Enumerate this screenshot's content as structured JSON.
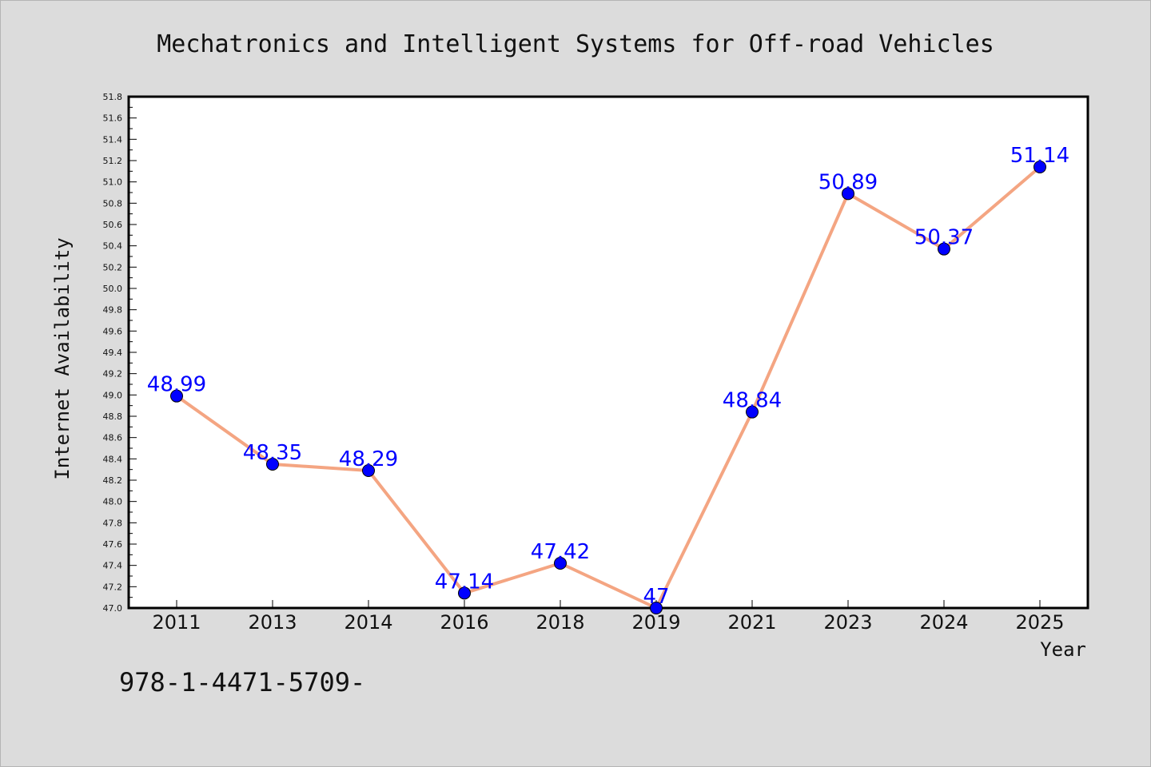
{
  "chart_data": {
    "type": "line",
    "title": "Mechatronics and Intelligent Systems for Off-road Vehicles",
    "xlabel": "Year",
    "ylabel": "Internet Availability",
    "categories": [
      "2011",
      "2013",
      "2014",
      "2016",
      "2018",
      "2019",
      "2021",
      "2023",
      "2024",
      "2025"
    ],
    "series": [
      {
        "values": [
          48.99,
          48.35,
          48.29,
          47.14,
          47.42,
          47.0,
          48.84,
          50.89,
          50.37,
          51.14
        ],
        "data_labels": [
          "48.99",
          "48.35",
          "48.29",
          "47.14",
          "47.42",
          "47",
          "48.84",
          "50.89",
          "50.37",
          "51.14"
        ],
        "line_color": "#f4a582",
        "marker_color": "#0000ff",
        "label_color": "#0000ff"
      }
    ],
    "ylim": [
      47.0,
      51.8
    ],
    "ytick_step": 0.2,
    "grid": false,
    "legend": false
  },
  "footer": {
    "text": "978-1-4471-5709-"
  },
  "colors": {
    "background": "#dcdcdc",
    "plot_area": "#ffffff",
    "axis": "#000000"
  }
}
